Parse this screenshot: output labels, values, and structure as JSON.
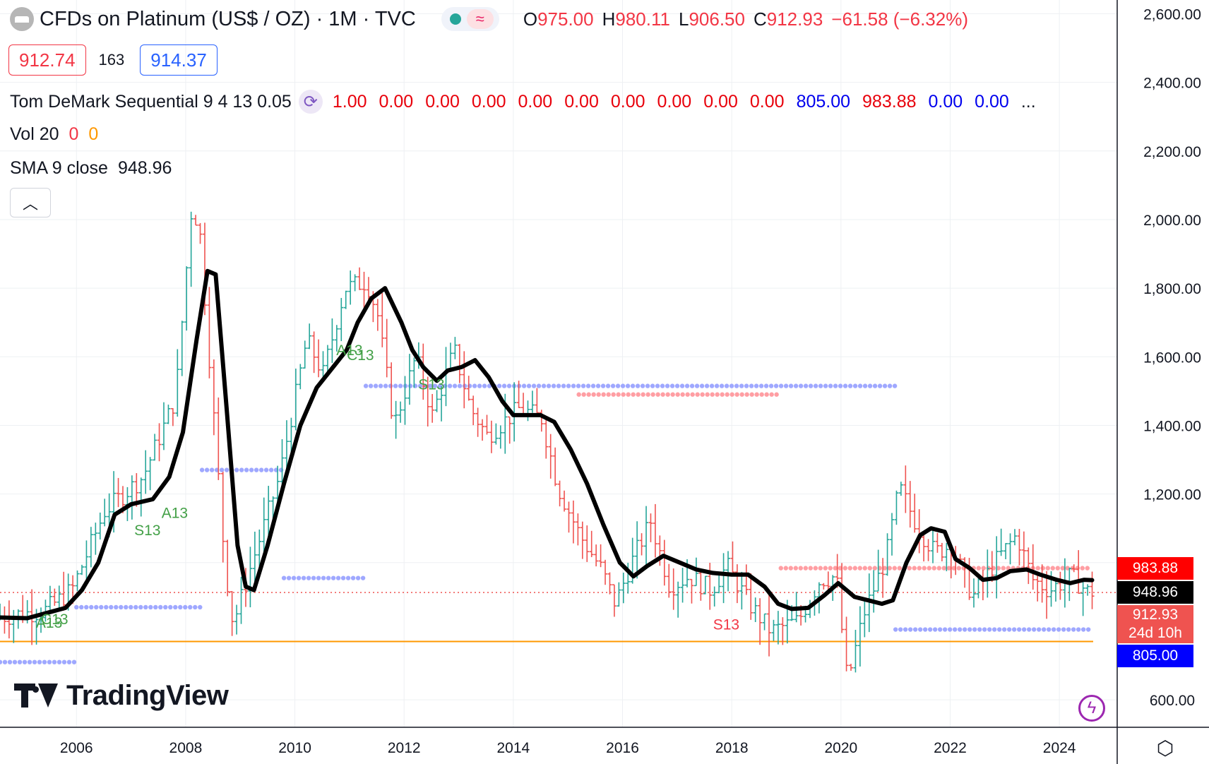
{
  "header": {
    "title": "CFDs on Platinum (US$ / OZ) · 1M · TVC",
    "ohlc": [
      {
        "k": "O",
        "v": "975.00"
      },
      {
        "k": "H",
        "v": "980.11"
      },
      {
        "k": "L",
        "v": "906.50"
      },
      {
        "k": "C",
        "v": "912.93"
      }
    ],
    "change": "−61.58 (−6.32%)",
    "sell_price": "912.74",
    "spread": "163",
    "buy_price": "914.37"
  },
  "indicators": {
    "demark": {
      "label": "Tom DeMark Sequential 9 4 13 0.05",
      "values": [
        {
          "v": "1.00",
          "color": "#e8000b"
        },
        {
          "v": "0.00",
          "color": "#e8000b"
        },
        {
          "v": "0.00",
          "color": "#e8000b"
        },
        {
          "v": "0.00",
          "color": "#e8000b"
        },
        {
          "v": "0.00",
          "color": "#e8000b"
        },
        {
          "v": "0.00",
          "color": "#e8000b"
        },
        {
          "v": "0.00",
          "color": "#e8000b"
        },
        {
          "v": "0.00",
          "color": "#e8000b"
        },
        {
          "v": "0.00",
          "color": "#e8000b"
        },
        {
          "v": "0.00",
          "color": "#e8000b"
        },
        {
          "v": "805.00",
          "color": "#0000ee"
        },
        {
          "v": "983.88",
          "color": "#e8000b"
        },
        {
          "v": "0.00",
          "color": "#0000ee"
        },
        {
          "v": "0.00",
          "color": "#0000ee"
        }
      ],
      "more": "..."
    },
    "vol": {
      "label": "Vol 20",
      "v1": "0",
      "v2": "0"
    },
    "sma": {
      "label": "SMA 9 close",
      "value": "948.96"
    }
  },
  "collapse_icon": "chevron-up-icon",
  "brand": "TradingView",
  "axis_tags": {
    "resistance": {
      "value": "983.88",
      "bg": "#ff0000"
    },
    "sma": {
      "value": "948.96",
      "bg": "#000000"
    },
    "last": {
      "value": "912.93",
      "countdown": "24d 10h",
      "bg": "#ef5350"
    },
    "support": {
      "value": "805.00",
      "bg": "#0000ff"
    }
  },
  "chart_data": {
    "type": "ohlc-bars",
    "interval": "1M",
    "y_axis": {
      "ticks": [
        "600.00",
        "1,200.00",
        "1,400.00",
        "1,600.00",
        "1,800.00",
        "2,000.00",
        "2,200.00",
        "2,400.00",
        "2,600.00"
      ],
      "tick_values": [
        600,
        1200,
        1400,
        1600,
        1800,
        2000,
        2200,
        2400,
        2600
      ],
      "range": [
        520,
        2640
      ]
    },
    "x_axis": {
      "ticks": [
        "2006",
        "2008",
        "2010",
        "2012",
        "2014",
        "2016",
        "2018",
        "2020",
        "2022",
        "2024"
      ],
      "tick_years": [
        2006,
        2008,
        2010,
        2012,
        2014,
        2016,
        2018,
        2020,
        2022,
        2024
      ],
      "range": [
        2004.6,
        2024.8
      ]
    },
    "grid": true,
    "price_anchors": [
      [
        2004.6,
        840
      ],
      [
        2005.5,
        860
      ],
      [
        2006.0,
        920
      ],
      [
        2006.6,
        1150
      ],
      [
        2007.3,
        1250
      ],
      [
        2007.9,
        1480
      ],
      [
        2008.2,
        2050
      ],
      [
        2008.35,
        1950
      ],
      [
        2008.8,
        1000
      ],
      [
        2008.95,
        820
      ],
      [
        2009.3,
        1000
      ],
      [
        2009.8,
        1250
      ],
      [
        2010.3,
        1650
      ],
      [
        2010.6,
        1550
      ],
      [
        2011.0,
        1800
      ],
      [
        2011.4,
        1820
      ],
      [
        2011.6,
        1720
      ],
      [
        2011.9,
        1400
      ],
      [
        2012.3,
        1600
      ],
      [
        2012.6,
        1430
      ],
      [
        2013.0,
        1620
      ],
      [
        2013.3,
        1450
      ],
      [
        2013.6,
        1370
      ],
      [
        2014.2,
        1450
      ],
      [
        2014.6,
        1420
      ],
      [
        2014.9,
        1220
      ],
      [
        2015.3,
        1080
      ],
      [
        2015.7,
        980
      ],
      [
        2015.95,
        880
      ],
      [
        2016.3,
        1020
      ],
      [
        2016.6,
        1120
      ],
      [
        2016.95,
        930
      ],
      [
        2017.3,
        960
      ],
      [
        2017.7,
        920
      ],
      [
        2018.0,
        990
      ],
      [
        2018.4,
        880
      ],
      [
        2018.8,
        800
      ],
      [
        2019.3,
        830
      ],
      [
        2019.7,
        950
      ],
      [
        2020.0,
        960
      ],
      [
        2020.2,
        650
      ],
      [
        2020.5,
        850
      ],
      [
        2020.9,
        1010
      ],
      [
        2021.15,
        1220
      ],
      [
        2021.5,
        1100
      ],
      [
        2021.8,
        1030
      ],
      [
        2022.1,
        1050
      ],
      [
        2022.5,
        900
      ],
      [
        2022.9,
        1000
      ],
      [
        2023.3,
        1080
      ],
      [
        2023.6,
        950
      ],
      [
        2023.9,
        920
      ],
      [
        2024.3,
        960
      ],
      [
        2024.6,
        915
      ]
    ],
    "sma_series": [
      [
        2004.6,
        840
      ],
      [
        2005.1,
        838
      ],
      [
        2005.5,
        855
      ],
      [
        2005.8,
        868
      ],
      [
        2006.1,
        920
      ],
      [
        2006.4,
        1000
      ],
      [
        2006.7,
        1140
      ],
      [
        2007.0,
        1170
      ],
      [
        2007.4,
        1185
      ],
      [
        2007.7,
        1250
      ],
      [
        2007.95,
        1380
      ],
      [
        2008.2,
        1650
      ],
      [
        2008.4,
        1850
      ],
      [
        2008.55,
        1840
      ],
      [
        2008.75,
        1450
      ],
      [
        2008.95,
        1050
      ],
      [
        2009.1,
        930
      ],
      [
        2009.25,
        920
      ],
      [
        2009.5,
        1050
      ],
      [
        2009.8,
        1230
      ],
      [
        2010.1,
        1400
      ],
      [
        2010.4,
        1510
      ],
      [
        2010.7,
        1570
      ],
      [
        2010.95,
        1620
      ],
      [
        2011.15,
        1700
      ],
      [
        2011.4,
        1770
      ],
      [
        2011.65,
        1800
      ],
      [
        2011.95,
        1700
      ],
      [
        2012.15,
        1620
      ],
      [
        2012.35,
        1570
      ],
      [
        2012.6,
        1530
      ],
      [
        2012.8,
        1560
      ],
      [
        2013.05,
        1570
      ],
      [
        2013.3,
        1590
      ],
      [
        2013.55,
        1540
      ],
      [
        2013.8,
        1470
      ],
      [
        2014.0,
        1430
      ],
      [
        2014.25,
        1430
      ],
      [
        2014.5,
        1430
      ],
      [
        2014.75,
        1410
      ],
      [
        2015.05,
        1330
      ],
      [
        2015.35,
        1230
      ],
      [
        2015.65,
        1110
      ],
      [
        2015.95,
        1000
      ],
      [
        2016.2,
        960
      ],
      [
        2016.45,
        990
      ],
      [
        2016.75,
        1020
      ],
      [
        2017.05,
        1000
      ],
      [
        2017.35,
        980
      ],
      [
        2017.65,
        970
      ],
      [
        2018.0,
        965
      ],
      [
        2018.3,
        965
      ],
      [
        2018.6,
        930
      ],
      [
        2018.85,
        880
      ],
      [
        2019.1,
        865
      ],
      [
        2019.4,
        868
      ],
      [
        2019.7,
        905
      ],
      [
        2019.95,
        940
      ],
      [
        2020.25,
        900
      ],
      [
        2020.5,
        890
      ],
      [
        2020.75,
        880
      ],
      [
        2020.95,
        890
      ],
      [
        2021.2,
        1000
      ],
      [
        2021.45,
        1080
      ],
      [
        2021.65,
        1100
      ],
      [
        2021.9,
        1090
      ],
      [
        2022.1,
        1010
      ],
      [
        2022.35,
        985
      ],
      [
        2022.6,
        950
      ],
      [
        2022.85,
        955
      ],
      [
        2023.1,
        975
      ],
      [
        2023.4,
        980
      ],
      [
        2023.65,
        965
      ],
      [
        2023.95,
        950
      ],
      [
        2024.2,
        940
      ],
      [
        2024.45,
        950
      ],
      [
        2024.6,
        949
      ]
    ],
    "demark_labels": [
      {
        "text": "C13",
        "x": 2005.6,
        "y": 820,
        "color": "#43a047"
      },
      {
        "text": "A13",
        "x": 2005.5,
        "y": 810,
        "color": "#43a047"
      },
      {
        "text": "S13",
        "x": 2007.3,
        "y": 1080,
        "color": "#43a047"
      },
      {
        "text": "A13",
        "x": 2007.8,
        "y": 1130,
        "color": "#43a047"
      },
      {
        "text": "A13",
        "x": 2011.0,
        "y": 1605,
        "color": "#43a047"
      },
      {
        "text": "C13",
        "x": 2011.2,
        "y": 1590,
        "color": "#43a047"
      },
      {
        "text": "S13",
        "x": 2012.5,
        "y": 1505,
        "color": "#43a047"
      },
      {
        "text": "S13",
        "x": 2017.9,
        "y": 805,
        "color": "#f23645"
      }
    ],
    "support_resistance_lines": [
      {
        "x0": 2004.6,
        "x1": 2006.0,
        "y": 710,
        "color": "#9fa8ff"
      },
      {
        "x0": 2006.0,
        "x1": 2008.3,
        "y": 870,
        "color": "#9fa8ff"
      },
      {
        "x0": 2008.3,
        "x1": 2009.8,
        "y": 1270,
        "color": "#9fa8ff"
      },
      {
        "x0": 2009.8,
        "x1": 2011.3,
        "y": 955,
        "color": "#9fa8ff"
      },
      {
        "x0": 2011.3,
        "x1": 2021.0,
        "y": 1515,
        "color": "#9fa8ff"
      },
      {
        "x0": 2015.2,
        "x1": 2018.9,
        "y": 1490,
        "color": "#ff9ea3"
      },
      {
        "x0": 2018.9,
        "x1": 2024.6,
        "y": 983.88,
        "color": "#ff9ea3"
      },
      {
        "x0": 2021.0,
        "x1": 2024.6,
        "y": 805,
        "color": "#9fa8ff"
      }
    ],
    "horizontal_line": {
      "y": 770,
      "color": "#ff9800"
    },
    "last_price_line": {
      "y": 912.93,
      "color": "#ef5350"
    },
    "tick_line_years": [
      2006,
      2008,
      2010,
      2012,
      2014,
      2016,
      2018,
      2020,
      2022,
      2024
    ]
  }
}
